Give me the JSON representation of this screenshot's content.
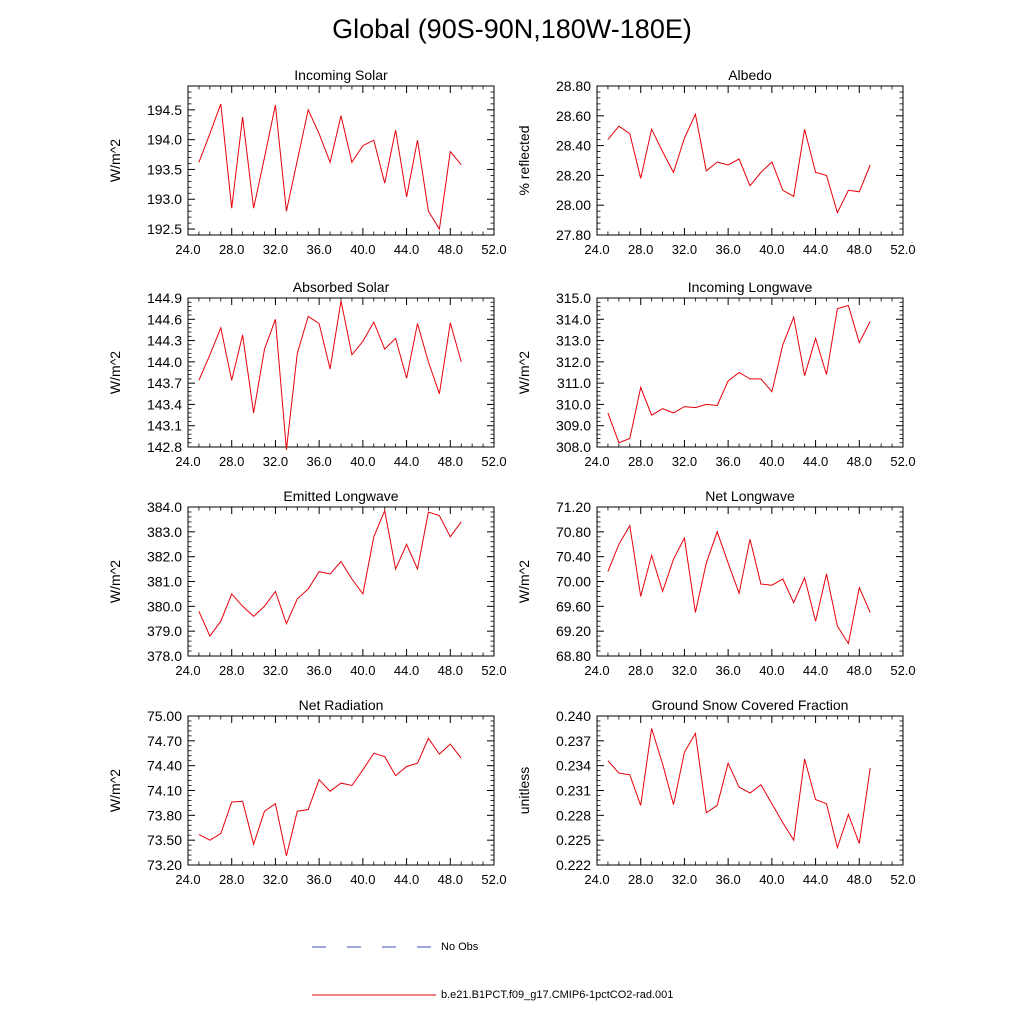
{
  "title": "Global (90S-90N,180W-180E)",
  "colors": {
    "series": "#e8000b",
    "obs": "#3b4cc0",
    "axis": "#000000"
  },
  "legend": {
    "obs_label": "No Obs",
    "series_label": "b.e21.B1PCT.f09_g17.CMIP6-1pctCO2-rad.001"
  },
  "chart_data": [
    {
      "type": "line",
      "title": "Incoming Solar",
      "ylabel": "W/m^2",
      "xlim": [
        24,
        52
      ],
      "ylim": [
        192.4,
        194.9
      ],
      "xticks": [
        24,
        28,
        32,
        36,
        40,
        44,
        48,
        52
      ],
      "xtick_labels": [
        "24.0",
        "28.0",
        "32.0",
        "36.0",
        "40.0",
        "44.0",
        "48.0",
        "52.0"
      ],
      "yticks": [
        192.5,
        193.0,
        193.5,
        194.0,
        194.5
      ],
      "ytick_labels": [
        "192.5",
        "193.0",
        "193.5",
        "194.0",
        "194.5"
      ],
      "x": [
        25,
        26,
        27,
        28,
        29,
        30,
        31,
        32,
        33,
        34,
        35,
        36,
        37,
        38,
        39,
        40,
        41,
        42,
        43,
        44,
        45,
        46,
        47,
        48,
        49
      ],
      "values": [
        193.62,
        194.1,
        194.6,
        192.85,
        194.38,
        192.85,
        193.7,
        194.58,
        192.8,
        193.65,
        194.5,
        194.1,
        193.62,
        194.4,
        193.62,
        193.9,
        193.99,
        193.27,
        194.16,
        193.04,
        193.99,
        192.8,
        192.5,
        193.8,
        193.58
      ]
    },
    {
      "type": "line",
      "title": "Albedo",
      "ylabel": "% reflected",
      "xlim": [
        24,
        52
      ],
      "ylim": [
        27.8,
        28.8
      ],
      "xticks": [
        24,
        28,
        32,
        36,
        40,
        44,
        48,
        52
      ],
      "xtick_labels": [
        "24.0",
        "28.0",
        "32.0",
        "36.0",
        "40.0",
        "44.0",
        "48.0",
        "52.0"
      ],
      "yticks": [
        27.8,
        28.0,
        28.2,
        28.4,
        28.6,
        28.8
      ],
      "ytick_labels": [
        "27.80",
        "28.00",
        "28.20",
        "28.40",
        "28.60",
        "28.80"
      ],
      "x": [
        25,
        26,
        27,
        28,
        29,
        30,
        31,
        32,
        33,
        34,
        35,
        36,
        37,
        38,
        39,
        40,
        41,
        42,
        43,
        44,
        45,
        46,
        47,
        48,
        49
      ],
      "values": [
        28.44,
        28.53,
        28.48,
        28.18,
        28.51,
        28.36,
        28.22,
        28.45,
        28.61,
        28.23,
        28.29,
        28.27,
        28.31,
        28.13,
        28.22,
        28.29,
        28.1,
        28.06,
        28.51,
        28.22,
        28.2,
        27.95,
        28.1,
        28.09,
        28.27
      ]
    },
    {
      "type": "line",
      "title": "Absorbed Solar",
      "ylabel": "W/m^2",
      "xlim": [
        24,
        52
      ],
      "ylim": [
        142.8,
        144.9
      ],
      "xticks": [
        24,
        28,
        32,
        36,
        40,
        44,
        48,
        52
      ],
      "xtick_labels": [
        "24.0",
        "28.0",
        "32.0",
        "36.0",
        "40.0",
        "44.0",
        "48.0",
        "52.0"
      ],
      "yticks": [
        142.8,
        143.1,
        143.4,
        143.7,
        144.0,
        144.3,
        144.6,
        144.9
      ],
      "ytick_labels": [
        "142.8",
        "143.1",
        "143.4",
        "143.7",
        "144.0",
        "144.3",
        "144.6",
        "144.9"
      ],
      "x": [
        25,
        26,
        27,
        28,
        29,
        30,
        31,
        32,
        33,
        34,
        35,
        36,
        37,
        38,
        39,
        40,
        41,
        42,
        43,
        44,
        45,
        46,
        47,
        48,
        49
      ],
      "values": [
        143.74,
        144.1,
        144.48,
        143.74,
        144.38,
        143.28,
        144.18,
        144.6,
        142.76,
        144.12,
        144.64,
        144.54,
        143.9,
        144.86,
        144.1,
        144.29,
        144.56,
        144.18,
        144.33,
        143.77,
        144.54,
        144.0,
        143.55,
        144.55,
        144.0
      ]
    },
    {
      "type": "line",
      "title": "Incoming Longwave",
      "ylabel": "W/m^2",
      "xlim": [
        24,
        52
      ],
      "ylim": [
        308.0,
        315.0
      ],
      "xticks": [
        24,
        28,
        32,
        36,
        40,
        44,
        48,
        52
      ],
      "xtick_labels": [
        "24.0",
        "28.0",
        "32.0",
        "36.0",
        "40.0",
        "44.0",
        "48.0",
        "52.0"
      ],
      "yticks": [
        308.0,
        309.0,
        310.0,
        311.0,
        312.0,
        313.0,
        314.0,
        315.0
      ],
      "ytick_labels": [
        "308.0",
        "309.0",
        "310.0",
        "311.0",
        "312.0",
        "313.0",
        "314.0",
        "315.0"
      ],
      "x": [
        25,
        26,
        27,
        28,
        29,
        30,
        31,
        32,
        33,
        34,
        35,
        36,
        37,
        38,
        39,
        40,
        41,
        42,
        43,
        44,
        45,
        46,
        47,
        48,
        49
      ],
      "values": [
        309.6,
        308.2,
        308.4,
        310.8,
        309.5,
        309.8,
        309.6,
        309.9,
        309.85,
        310.0,
        309.95,
        311.1,
        311.5,
        311.2,
        311.2,
        310.6,
        312.8,
        314.1,
        311.35,
        313.1,
        311.4,
        314.5,
        314.65,
        312.9,
        313.9
      ]
    },
    {
      "type": "line",
      "title": "Emitted Longwave",
      "ylabel": "W/m^2",
      "xlim": [
        24,
        52
      ],
      "ylim": [
        378.0,
        384.0
      ],
      "xticks": [
        24,
        28,
        32,
        36,
        40,
        44,
        48,
        52
      ],
      "xtick_labels": [
        "24.0",
        "28.0",
        "32.0",
        "36.0",
        "40.0",
        "44.0",
        "48.0",
        "52.0"
      ],
      "yticks": [
        378.0,
        379.0,
        380.0,
        381.0,
        382.0,
        383.0,
        384.0
      ],
      "ytick_labels": [
        "378.0",
        "379.0",
        "380.0",
        "381.0",
        "382.0",
        "383.0",
        "384.0"
      ],
      "x": [
        25,
        26,
        27,
        28,
        29,
        30,
        31,
        32,
        33,
        34,
        35,
        36,
        37,
        38,
        39,
        40,
        41,
        42,
        43,
        44,
        45,
        46,
        47,
        48,
        49
      ],
      "values": [
        379.8,
        378.8,
        379.4,
        380.5,
        380.0,
        379.6,
        380.0,
        380.6,
        379.3,
        380.3,
        380.7,
        381.4,
        381.3,
        381.8,
        381.1,
        380.5,
        382.8,
        383.85,
        381.5,
        382.5,
        381.5,
        383.8,
        383.65,
        382.8,
        383.4
      ]
    },
    {
      "type": "line",
      "title": "Net Longwave",
      "ylabel": "W/m^2",
      "xlim": [
        24,
        52
      ],
      "ylim": [
        68.8,
        71.2
      ],
      "xticks": [
        24,
        28,
        32,
        36,
        40,
        44,
        48,
        52
      ],
      "xtick_labels": [
        "24.0",
        "28.0",
        "32.0",
        "36.0",
        "40.0",
        "44.0",
        "48.0",
        "52.0"
      ],
      "yticks": [
        68.8,
        69.2,
        69.6,
        70.0,
        70.4,
        70.8,
        71.2
      ],
      "ytick_labels": [
        "68.80",
        "69.20",
        "69.60",
        "70.00",
        "70.40",
        "70.80",
        "71.20"
      ],
      "x": [
        25,
        26,
        27,
        28,
        29,
        30,
        31,
        32,
        33,
        34,
        35,
        36,
        37,
        38,
        39,
        40,
        41,
        42,
        43,
        44,
        45,
        46,
        47,
        48,
        49
      ],
      "values": [
        70.16,
        70.6,
        70.9,
        69.76,
        70.42,
        69.84,
        70.36,
        70.7,
        69.5,
        70.3,
        70.8,
        70.3,
        69.81,
        70.68,
        69.96,
        69.94,
        70.04,
        69.66,
        70.06,
        69.36,
        70.12,
        69.28,
        69.0,
        69.9,
        69.5
      ]
    },
    {
      "type": "line",
      "title": "Net Radiation",
      "ylabel": "W/m^2",
      "xlim": [
        24,
        52
      ],
      "ylim": [
        73.2,
        75.0
      ],
      "xticks": [
        24,
        28,
        32,
        36,
        40,
        44,
        48,
        52
      ],
      "xtick_labels": [
        "24.0",
        "28.0",
        "32.0",
        "36.0",
        "40.0",
        "44.0",
        "48.0",
        "52.0"
      ],
      "yticks": [
        73.2,
        73.5,
        73.8,
        74.1,
        74.4,
        74.7,
        75.0
      ],
      "ytick_labels": [
        "73.20",
        "73.50",
        "73.80",
        "74.10",
        "74.40",
        "74.70",
        "75.00"
      ],
      "x": [
        25,
        26,
        27,
        28,
        29,
        30,
        31,
        32,
        33,
        34,
        35,
        36,
        37,
        38,
        39,
        40,
        41,
        42,
        43,
        44,
        45,
        46,
        47,
        48,
        49
      ],
      "values": [
        73.57,
        73.5,
        73.58,
        73.96,
        73.97,
        73.45,
        73.85,
        73.94,
        73.31,
        73.85,
        73.87,
        74.23,
        74.09,
        74.19,
        74.16,
        74.35,
        74.55,
        74.51,
        74.28,
        74.39,
        74.43,
        74.73,
        74.54,
        74.66,
        74.49
      ]
    },
    {
      "type": "line",
      "title": "Ground Snow Covered Fraction",
      "ylabel": "unitless",
      "xlim": [
        24,
        52
      ],
      "ylim": [
        0.222,
        0.24
      ],
      "xticks": [
        24,
        28,
        32,
        36,
        40,
        44,
        48,
        52
      ],
      "xtick_labels": [
        "24.0",
        "28.0",
        "32.0",
        "36.0",
        "40.0",
        "44.0",
        "48.0",
        "52.0"
      ],
      "yticks": [
        0.222,
        0.225,
        0.228,
        0.231,
        0.234,
        0.237,
        0.24
      ],
      "ytick_labels": [
        "0.222",
        "0.225",
        "0.228",
        "0.231",
        "0.234",
        "0.237",
        "0.240"
      ],
      "x": [
        25,
        26,
        27,
        28,
        29,
        30,
        31,
        32,
        33,
        34,
        35,
        36,
        37,
        38,
        39,
        40,
        41,
        42,
        43,
        44,
        45,
        46,
        47,
        48,
        49
      ],
      "values": [
        0.2346,
        0.2331,
        0.2329,
        0.2292,
        0.2385,
        0.2342,
        0.2293,
        0.2356,
        0.2379,
        0.2283,
        0.2292,
        0.2343,
        0.2314,
        0.2307,
        0.2317,
        0.2294,
        0.2271,
        0.225,
        0.2348,
        0.2299,
        0.2294,
        0.2241,
        0.2281,
        0.2246,
        0.2337
      ]
    }
  ]
}
